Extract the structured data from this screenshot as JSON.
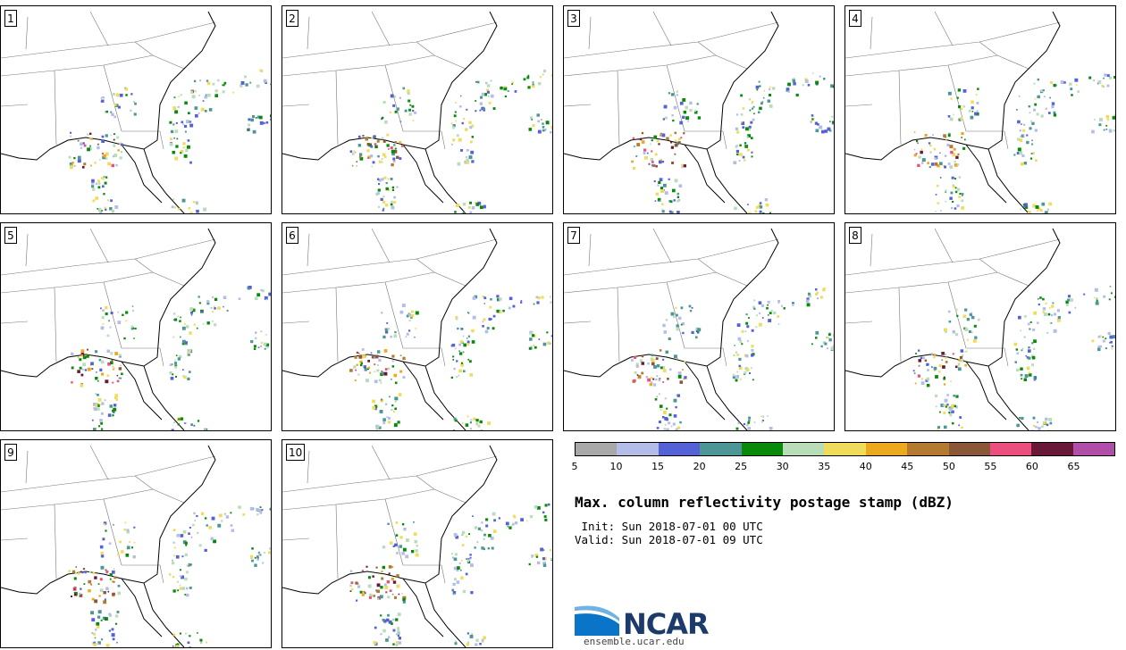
{
  "title": "Max. column reflectivity postage stamp (dBZ)",
  "init": " Init: Sun 2018-07-01 00 UTC",
  "valid": "Valid: Sun 2018-07-01 09 UTC",
  "members": [
    "1",
    "2",
    "3",
    "4",
    "5",
    "6",
    "7",
    "8",
    "9",
    "10"
  ],
  "colorbar": {
    "ticks": [
      "5",
      "10",
      "15",
      "20",
      "25",
      "30",
      "35",
      "40",
      "45",
      "50",
      "55",
      "60",
      "65"
    ],
    "colors": [
      "#a8a8a8",
      "#b4bde8",
      "#5561d6",
      "#4d9696",
      "#0a8a0a",
      "#b9ddb9",
      "#eedc5a",
      "#eca81e",
      "#b47a30",
      "#8a5838",
      "#ea4f7e",
      "#6a1838",
      "#b04ea8"
    ]
  },
  "logo": {
    "name": "NCAR",
    "url": "ensemble.ucar.edu"
  }
}
